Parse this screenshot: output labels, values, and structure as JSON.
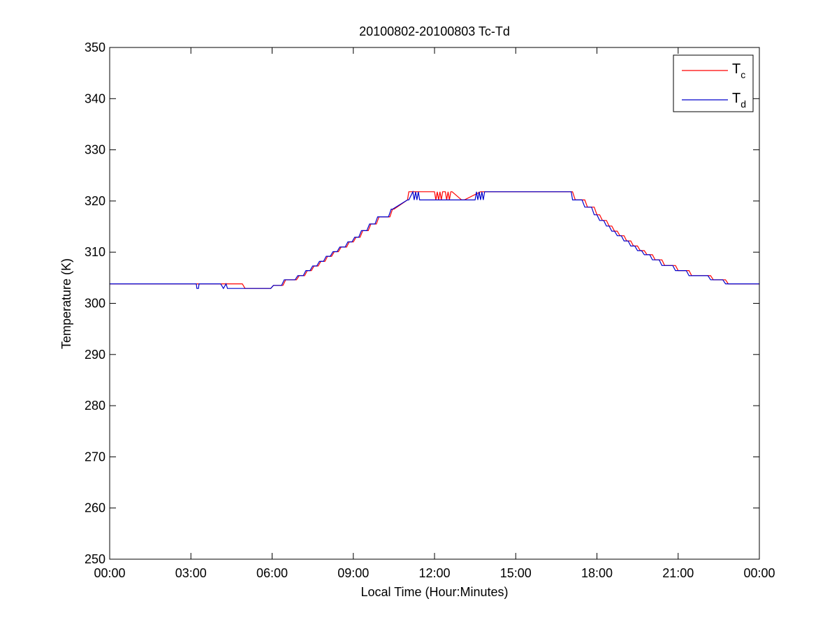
{
  "chart_data": {
    "type": "line",
    "title": "20100802-20100803 Tc-Td",
    "xlabel": "Local Time (Hour:Minutes)",
    "ylabel": "Temperature (K)",
    "xlim": [
      0,
      24
    ],
    "ylim": [
      250,
      350
    ],
    "x_ticks": [
      0,
      3,
      6,
      9,
      12,
      15,
      18,
      21,
      24
    ],
    "x_tick_labels": [
      "00:00",
      "03:00",
      "06:00",
      "09:00",
      "12:00",
      "15:00",
      "18:00",
      "21:00",
      "00:00"
    ],
    "y_ticks": [
      250,
      260,
      270,
      280,
      290,
      300,
      310,
      320,
      330,
      340,
      350
    ],
    "y_tick_labels": [
      "250",
      "260",
      "270",
      "280",
      "290",
      "300",
      "310",
      "320",
      "330",
      "340",
      "350"
    ],
    "grid": false,
    "legend_position": "top-right",
    "series": [
      {
        "name": "Tc",
        "legend_main": "T",
        "legend_sub": "c",
        "color": "#ff0000",
        "x": [
          0,
          3.2,
          3.25,
          3.3,
          4.2,
          4.4,
          4.45,
          4.9,
          5.0,
          5.95,
          6.05,
          6.4,
          6.5,
          6.9,
          7.0,
          7.2,
          7.3,
          7.45,
          7.55,
          7.7,
          7.8,
          7.95,
          8.05,
          8.2,
          8.3,
          8.45,
          8.55,
          8.75,
          8.85,
          9.0,
          9.1,
          9.25,
          9.35,
          9.55,
          9.65,
          9.85,
          9.95,
          10.35,
          10.45,
          10.5,
          11.0,
          11.05,
          12.0,
          12.05,
          12.1,
          12.15,
          12.2,
          12.25,
          12.3,
          12.4,
          12.45,
          12.5,
          12.55,
          12.6,
          12.65,
          13.0,
          13.1,
          13.7,
          13.75,
          17.1,
          17.2,
          17.55,
          17.65,
          17.9,
          18.0,
          18.1,
          18.2,
          18.35,
          18.45,
          18.55,
          18.65,
          18.75,
          18.85,
          19.0,
          19.1,
          19.25,
          19.35,
          19.5,
          19.6,
          19.75,
          19.85,
          20.05,
          20.15,
          20.4,
          20.5,
          20.9,
          21.0,
          21.4,
          21.5,
          22.2,
          22.3,
          22.75,
          22.85,
          24
        ],
        "y": [
          303.8,
          303.8,
          303.8,
          303.8,
          303.8,
          303.8,
          303.8,
          303.8,
          302.9,
          302.9,
          303.5,
          303.5,
          304.6,
          304.6,
          305.4,
          305.4,
          306.4,
          306.4,
          307.3,
          307.3,
          308.2,
          308.2,
          309.2,
          309.2,
          310.1,
          310.1,
          311.0,
          311.0,
          312.0,
          312.0,
          312.9,
          312.9,
          314.2,
          314.2,
          315.5,
          315.5,
          316.9,
          316.9,
          318.4,
          318.4,
          320.2,
          321.8,
          321.8,
          320.2,
          321.8,
          320.2,
          321.8,
          320.2,
          321.8,
          321.8,
          320.2,
          321.8,
          320.2,
          321.8,
          321.8,
          320.2,
          320.2,
          321.8,
          321.8,
          321.8,
          320.2,
          320.2,
          318.8,
          318.8,
          317.3,
          317.3,
          316.2,
          316.2,
          315.1,
          315.1,
          314.1,
          314.1,
          313.2,
          313.2,
          312.2,
          312.2,
          311.2,
          311.2,
          310.3,
          310.3,
          309.5,
          309.5,
          308.5,
          308.5,
          307.4,
          307.4,
          306.4,
          306.4,
          305.4,
          305.4,
          304.6,
          304.6,
          303.8,
          303.8
        ]
      },
      {
        "name": "Td",
        "legend_main": "T",
        "legend_sub": "d",
        "color": "#0000cc",
        "x": [
          0,
          3.2,
          3.22,
          3.28,
          3.3,
          4.1,
          4.2,
          4.3,
          4.35,
          5.0,
          5.95,
          6.05,
          6.35,
          6.45,
          6.85,
          6.95,
          7.15,
          7.25,
          7.4,
          7.5,
          7.65,
          7.75,
          7.9,
          8.0,
          8.15,
          8.25,
          8.4,
          8.5,
          8.7,
          8.8,
          8.95,
          9.05,
          9.2,
          9.3,
          9.5,
          9.6,
          9.8,
          9.9,
          10.3,
          10.4,
          10.45,
          11.0,
          11.05,
          11.2,
          11.25,
          11.3,
          11.35,
          11.4,
          11.45,
          11.5,
          13.5,
          13.55,
          13.6,
          13.65,
          13.7,
          13.75,
          13.8,
          13.85,
          13.9,
          17.05,
          17.1,
          17.45,
          17.55,
          17.8,
          17.9,
          18.0,
          18.1,
          18.25,
          18.35,
          18.45,
          18.55,
          18.65,
          18.75,
          18.9,
          19.0,
          19.15,
          19.25,
          19.4,
          19.5,
          19.65,
          19.75,
          19.95,
          20.05,
          20.3,
          20.4,
          20.8,
          20.9,
          21.3,
          21.4,
          22.1,
          22.2,
          22.65,
          22.75,
          24
        ],
        "y": [
          303.8,
          303.8,
          302.9,
          302.9,
          303.8,
          303.8,
          302.9,
          303.8,
          302.9,
          302.9,
          302.9,
          303.5,
          303.5,
          304.6,
          304.6,
          305.4,
          305.4,
          306.4,
          306.4,
          307.3,
          307.3,
          308.2,
          308.2,
          309.2,
          309.2,
          310.1,
          310.1,
          311.0,
          311.0,
          312.0,
          312.0,
          312.9,
          312.9,
          314.2,
          314.2,
          315.5,
          315.5,
          316.9,
          316.9,
          318.4,
          318.4,
          320.2,
          320.2,
          321.8,
          320.2,
          321.8,
          320.2,
          321.8,
          320.2,
          320.2,
          320.2,
          321.8,
          320.2,
          321.8,
          320.2,
          321.8,
          320.2,
          321.8,
          321.8,
          321.8,
          320.2,
          320.2,
          318.8,
          318.8,
          317.3,
          317.3,
          316.2,
          316.2,
          315.1,
          315.1,
          314.1,
          314.1,
          313.2,
          313.2,
          312.2,
          312.2,
          311.2,
          311.2,
          310.3,
          310.3,
          309.5,
          309.5,
          308.5,
          308.5,
          307.4,
          307.4,
          306.4,
          306.4,
          305.4,
          305.4,
          304.6,
          304.6,
          303.8,
          303.8
        ]
      }
    ]
  }
}
